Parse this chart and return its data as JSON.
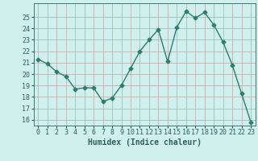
{
  "x": [
    0,
    1,
    2,
    3,
    4,
    5,
    6,
    7,
    8,
    9,
    10,
    11,
    12,
    13,
    14,
    15,
    16,
    17,
    18,
    19,
    20,
    21,
    22,
    23
  ],
  "y": [
    21.3,
    20.9,
    20.2,
    19.8,
    18.7,
    18.8,
    18.8,
    17.6,
    17.9,
    19.0,
    20.5,
    22.0,
    23.0,
    23.9,
    21.1,
    24.1,
    25.5,
    24.9,
    25.4,
    24.3,
    22.8,
    20.8,
    18.3,
    15.8
  ],
  "line_color": "#2e7d6e",
  "marker": "D",
  "marker_size": 2.5,
  "bg_color": "#cff0ec",
  "grid_color": "#b8a8a8",
  "xlabel": "Humidex (Indice chaleur)",
  "ylim": [
    15.5,
    26.2
  ],
  "xlim": [
    -0.5,
    23.5
  ],
  "yticks": [
    16,
    17,
    18,
    19,
    20,
    21,
    22,
    23,
    24,
    25
  ],
  "xticks": [
    0,
    1,
    2,
    3,
    4,
    5,
    6,
    7,
    8,
    9,
    10,
    11,
    12,
    13,
    14,
    15,
    16,
    17,
    18,
    19,
    20,
    21,
    22,
    23
  ],
  "tick_color": "#2e6060",
  "tick_label_fontsize": 6,
  "xlabel_fontsize": 7,
  "linewidth": 1.0
}
